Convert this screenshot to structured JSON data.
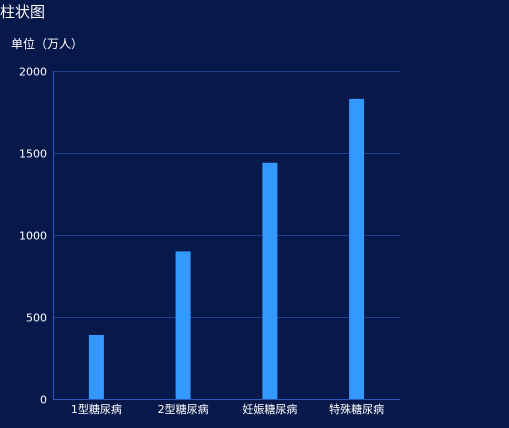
{
  "page": {
    "title": "柱状图",
    "unit_label": "单位（万人）"
  },
  "chart_data": {
    "type": "bar",
    "categories": [
      "1型糖尿病",
      "2型糖尿病",
      "妊娠糖尿病",
      "特殊糖尿病"
    ],
    "values": [
      390,
      900,
      1440,
      1830
    ],
    "ylim": [
      0,
      2000
    ],
    "yticks": [
      0,
      500,
      1000,
      1500,
      2000
    ],
    "grid": true,
    "legend": "none",
    "colors": {
      "background": "#07184b",
      "bar": "#3399ff",
      "grid": "#1e3f8c",
      "axis": "#2a57b8",
      "text": "#ffffff"
    }
  }
}
